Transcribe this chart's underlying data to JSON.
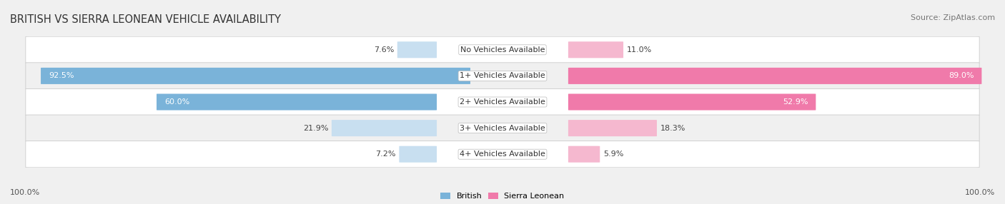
{
  "title": "BRITISH VS SIERRA LEONEAN VEHICLE AVAILABILITY",
  "source": "Source: ZipAtlas.com",
  "categories": [
    "No Vehicles Available",
    "1+ Vehicles Available",
    "2+ Vehicles Available",
    "3+ Vehicles Available",
    "4+ Vehicles Available"
  ],
  "british_values": [
    7.6,
    92.5,
    60.0,
    21.9,
    7.2
  ],
  "sierraleonean_values": [
    11.0,
    89.0,
    52.9,
    18.3,
    5.9
  ],
  "british_color": "#7ab3d9",
  "british_color_light": "#c8dff0",
  "sierraleonean_color": "#f07aaa",
  "sierraleonean_color_light": "#f5b8cf",
  "bar_max": 100.0,
  "legend_british": "British",
  "legend_sierraleonean": "Sierra Leonean",
  "title_fontsize": 10.5,
  "label_fontsize": 8.0,
  "tick_fontsize": 8.0,
  "source_fontsize": 8.0,
  "solid_threshold": 30.0
}
